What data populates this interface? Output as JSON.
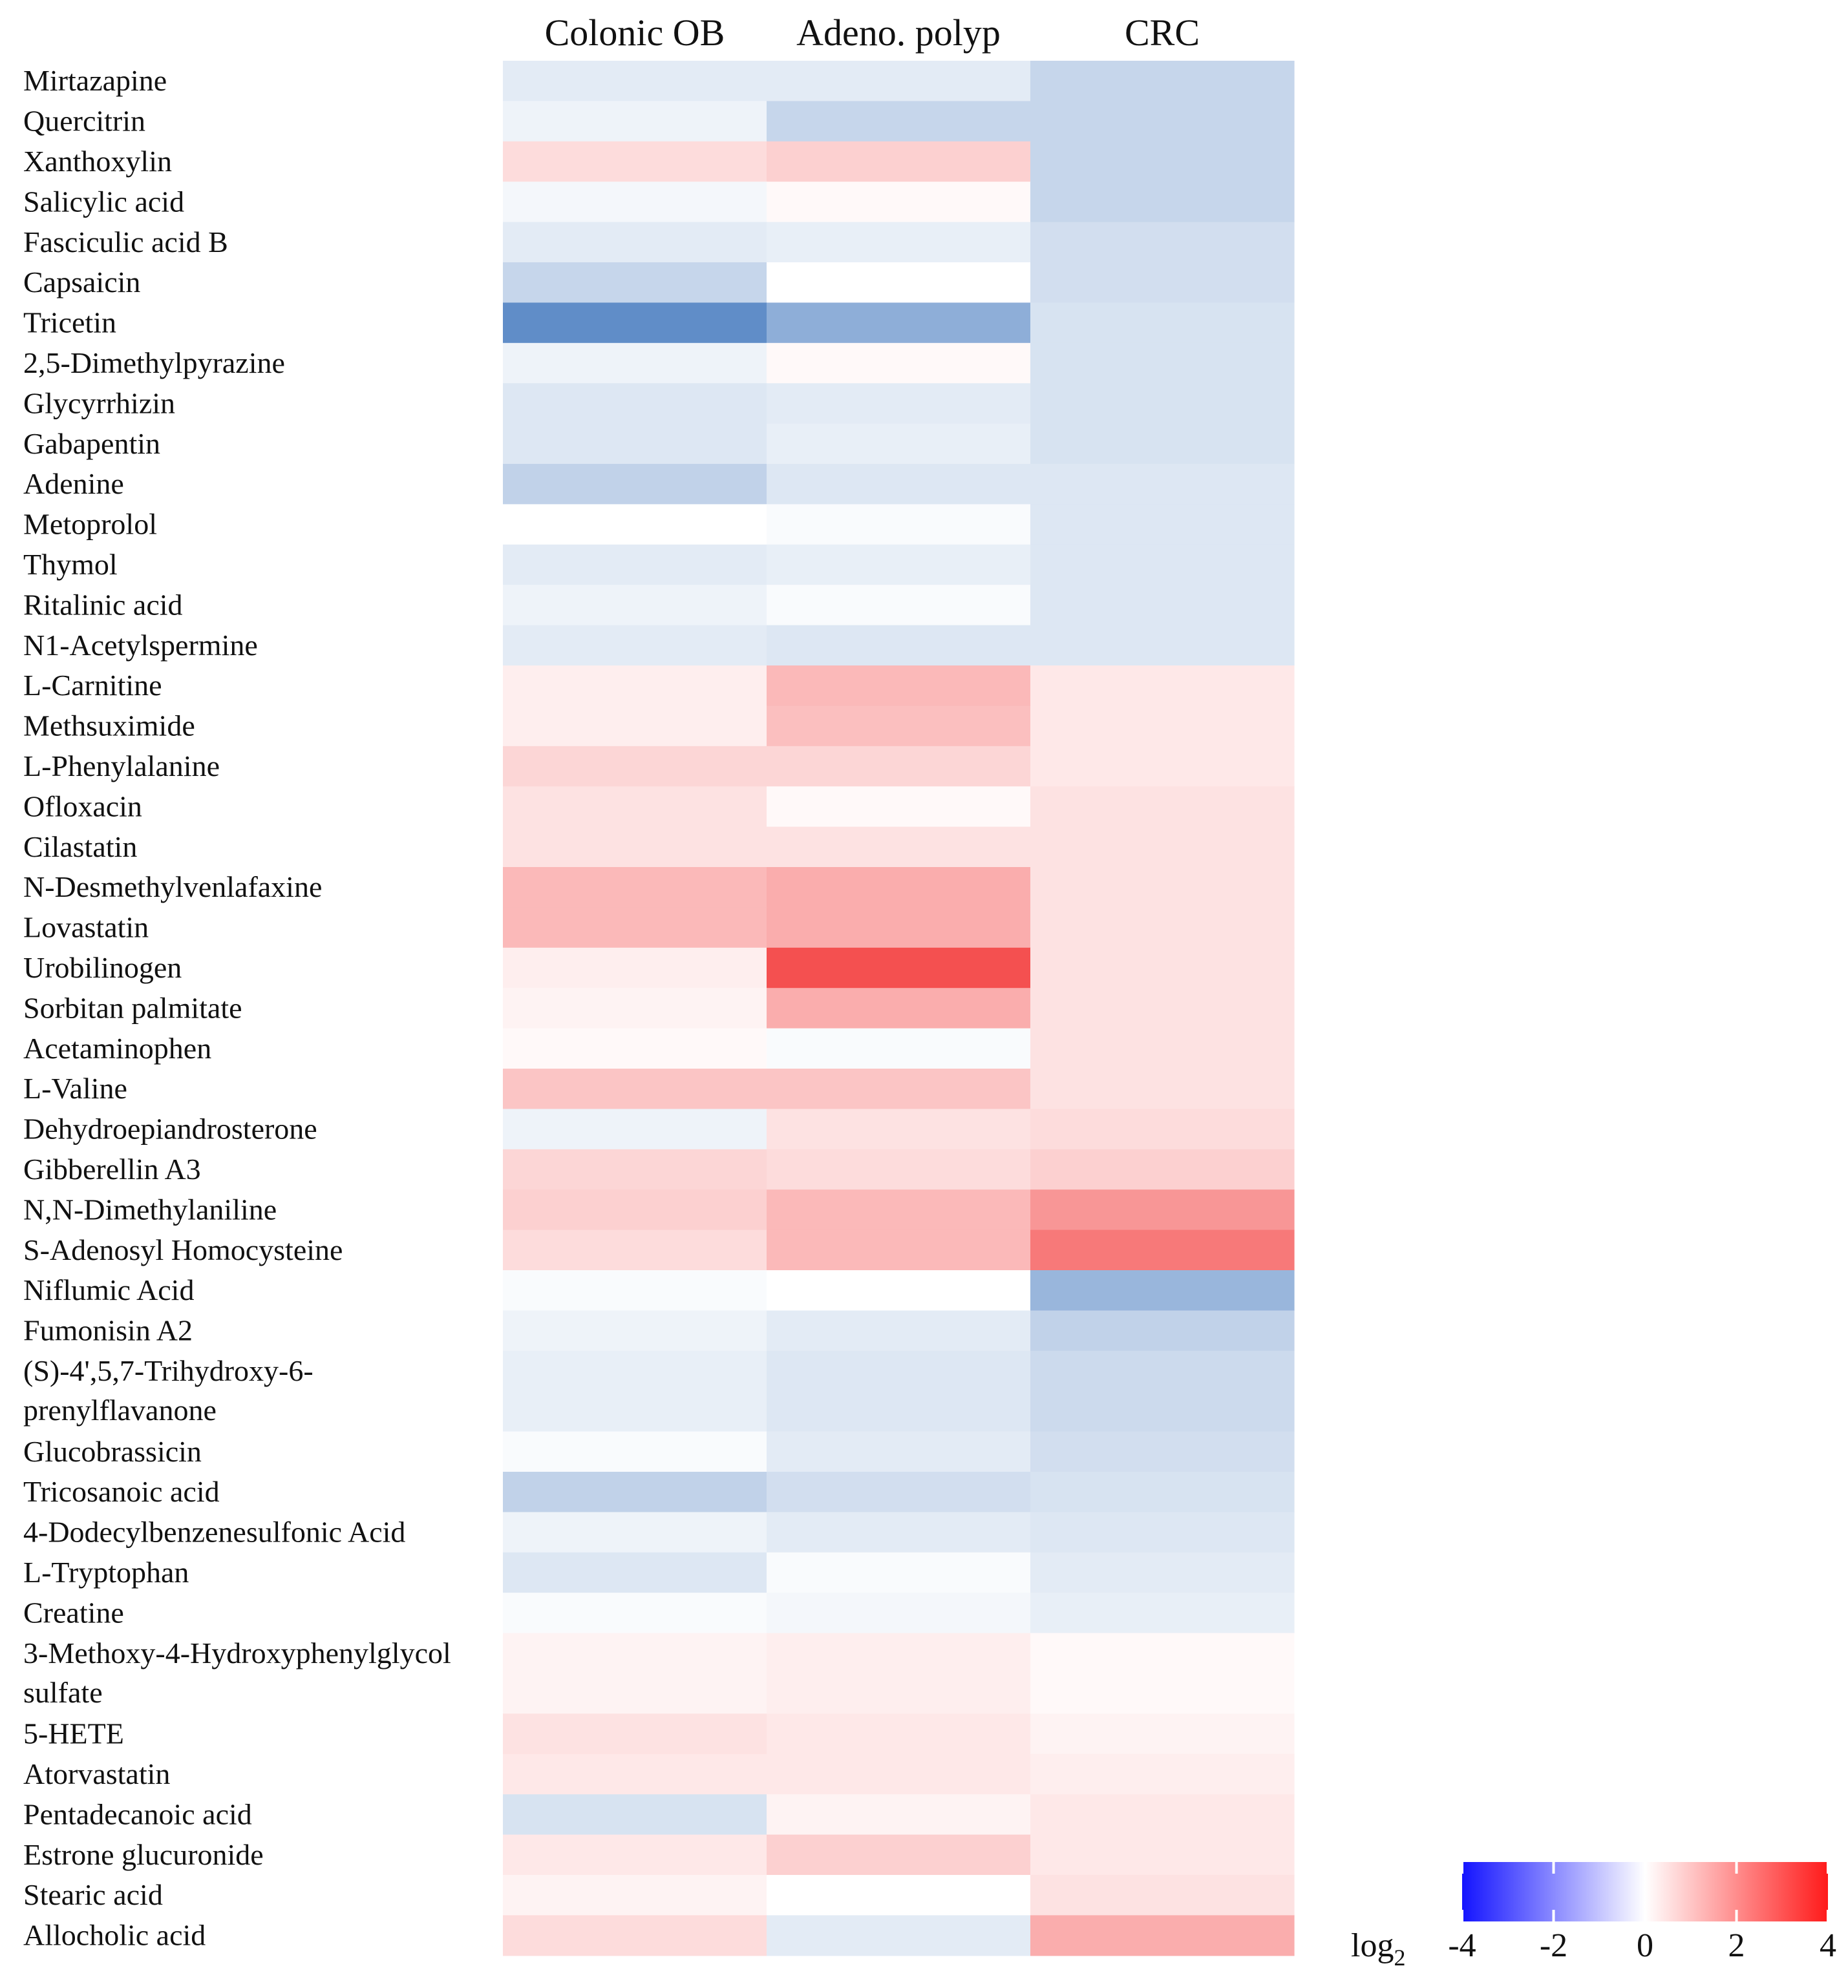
{
  "chart_data": {
    "type": "heatmap",
    "columns": [
      "Colonic OB",
      "Adeno. polyp",
      "CRC"
    ],
    "rows": [
      {
        "label": [
          "Mirtazapine"
        ],
        "values": [
          -0.5,
          -0.5,
          -1.0
        ]
      },
      {
        "label": [
          "Quercitrin"
        ],
        "values": [
          -0.3,
          -1.0,
          -1.0
        ]
      },
      {
        "label": [
          "Xanthoxylin"
        ],
        "values": [
          0.6,
          0.8,
          -1.0
        ]
      },
      {
        "label": [
          "Salicylic acid"
        ],
        "values": [
          -0.2,
          0.1,
          -1.0
        ]
      },
      {
        "label": [
          "Fasciculic acid B"
        ],
        "values": [
          -0.5,
          -0.4,
          -0.8
        ]
      },
      {
        "label": [
          "Capsaicin"
        ],
        "values": [
          -1.0,
          0.0,
          -0.8
        ]
      },
      {
        "label": [
          "Tricetin"
        ],
        "values": [
          -2.8,
          -2.0,
          -0.7
        ]
      },
      {
        "label": [
          "2,5-Dimethylpyrazine"
        ],
        "values": [
          -0.3,
          0.1,
          -0.7
        ]
      },
      {
        "label": [
          "Glycyrrhizin"
        ],
        "values": [
          -0.6,
          -0.5,
          -0.7
        ]
      },
      {
        "label": [
          "Gabapentin"
        ],
        "values": [
          -0.6,
          -0.4,
          -0.7
        ]
      },
      {
        "label": [
          "Adenine"
        ],
        "values": [
          -1.1,
          -0.6,
          -0.6
        ]
      },
      {
        "label": [
          "Metoprolol"
        ],
        "values": [
          0.0,
          -0.1,
          -0.6
        ]
      },
      {
        "label": [
          "Thymol"
        ],
        "values": [
          -0.5,
          -0.4,
          -0.6
        ]
      },
      {
        "label": [
          "Ritalinic acid"
        ],
        "values": [
          -0.3,
          -0.1,
          -0.6
        ]
      },
      {
        "label": [
          "N1-Acetylspermine"
        ],
        "values": [
          -0.5,
          -0.6,
          -0.6
        ]
      },
      {
        "label": [
          "L-Carnitine"
        ],
        "values": [
          0.3,
          1.2,
          0.4
        ]
      },
      {
        "label": [
          "Methsuximide"
        ],
        "values": [
          0.3,
          1.1,
          0.4
        ]
      },
      {
        "label": [
          "L-Phenylalanine"
        ],
        "values": [
          0.7,
          0.7,
          0.4
        ]
      },
      {
        "label": [
          "Ofloxacin"
        ],
        "values": [
          0.5,
          0.1,
          0.5
        ]
      },
      {
        "label": [
          "Cilastatin"
        ],
        "values": [
          0.5,
          0.5,
          0.5
        ]
      },
      {
        "label": [
          "N-Desmethylvenlafaxine"
        ],
        "values": [
          1.2,
          1.4,
          0.5
        ]
      },
      {
        "label": [
          "Lovastatin"
        ],
        "values": [
          1.2,
          1.4,
          0.5
        ]
      },
      {
        "label": [
          "Urobilinogen"
        ],
        "values": [
          0.3,
          3.2,
          0.5
        ]
      },
      {
        "label": [
          "Sorbitan palmitate"
        ],
        "values": [
          0.2,
          1.4,
          0.5
        ]
      },
      {
        "label": [
          "Acetaminophen"
        ],
        "values": [
          0.1,
          -0.1,
          0.5
        ]
      },
      {
        "label": [
          "L-Valine"
        ],
        "values": [
          1.0,
          1.0,
          0.5
        ]
      },
      {
        "label": [
          "Dehydroepiandrosterone"
        ],
        "values": [
          -0.3,
          0.5,
          0.6
        ]
      },
      {
        "label": [
          "Gibberellin A3"
        ],
        "values": [
          0.7,
          0.6,
          0.8
        ]
      },
      {
        "label": [
          "N,N-Dimethylaniline"
        ],
        "values": [
          0.8,
          1.2,
          1.8
        ]
      },
      {
        "label": [
          "S-Adenosyl Homocysteine"
        ],
        "values": [
          0.6,
          1.2,
          2.3
        ]
      },
      {
        "label": [
          "Niflumic Acid"
        ],
        "values": [
          -0.1,
          0.0,
          -1.8
        ]
      },
      {
        "label": [
          "Fumonisin A2"
        ],
        "values": [
          -0.3,
          -0.5,
          -1.1
        ]
      },
      {
        "label": [
          "(S)-4',5,7-Trihydroxy-6-",
          "prenylflavanone"
        ],
        "values": [
          -0.4,
          -0.6,
          -0.9
        ]
      },
      {
        "label": [
          "Glucobrassicin"
        ],
        "values": [
          -0.1,
          -0.5,
          -0.8
        ]
      },
      {
        "label": [
          "Tricosanoic acid"
        ],
        "values": [
          -1.1,
          -0.8,
          -0.7
        ]
      },
      {
        "label": [
          "4-Dodecylbenzenesulfonic Acid"
        ],
        "values": [
          -0.3,
          -0.5,
          -0.6
        ]
      },
      {
        "label": [
          "L-Tryptophan"
        ],
        "values": [
          -0.6,
          -0.1,
          -0.5
        ]
      },
      {
        "label": [
          "Creatine"
        ],
        "values": [
          -0.1,
          -0.2,
          -0.4
        ]
      },
      {
        "label": [
          "3-Methoxy-4-Hydroxyphenylglycol",
          "sulfate"
        ],
        "values": [
          0.2,
          0.3,
          0.1
        ]
      },
      {
        "label": [
          "5-HETE"
        ],
        "values": [
          0.5,
          0.4,
          0.2
        ]
      },
      {
        "label": [
          "Atorvastatin"
        ],
        "values": [
          0.4,
          0.4,
          0.3
        ]
      },
      {
        "label": [
          "Pentadecanoic acid"
        ],
        "values": [
          -0.7,
          0.2,
          0.4
        ]
      },
      {
        "label": [
          "Estrone glucuronide"
        ],
        "values": [
          0.4,
          0.8,
          0.4
        ]
      },
      {
        "label": [
          "Stearic acid"
        ],
        "values": [
          0.2,
          0.0,
          0.5
        ]
      },
      {
        "label": [
          "Allocholic acid"
        ],
        "values": [
          0.6,
          -0.5,
          1.4
        ]
      }
    ],
    "colorbar": {
      "label": "log",
      "label_sub": "2",
      "ticks": [
        "-4",
        "-2",
        "0",
        "2",
        "4"
      ],
      "range": [
        -4,
        4
      ]
    },
    "colors": {
      "low": "#1a1aff",
      "mid": "#ffffff",
      "high": "#ff2a2a",
      "cell_low": "#5585c4",
      "cell_high": "#f45050",
      "text": "#111111"
    }
  }
}
